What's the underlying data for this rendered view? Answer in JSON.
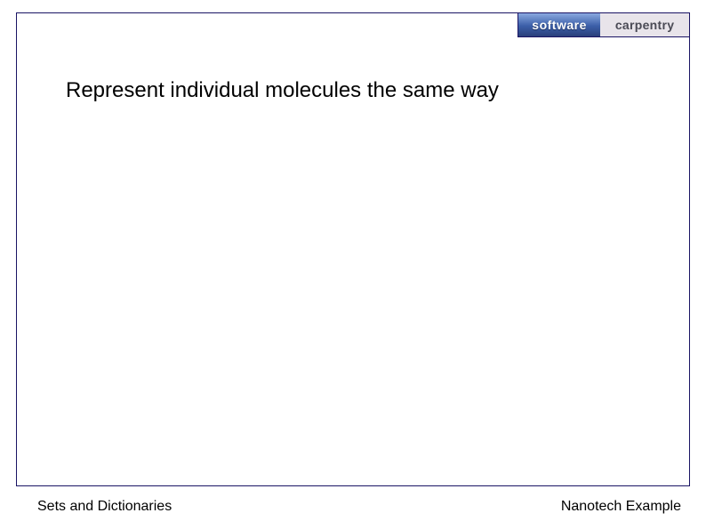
{
  "logo": {
    "left_text": "software",
    "right_text": "carpentry",
    "left_bg_gradient_top": "#8aa9e0",
    "left_bg_gradient_mid": "#3b5ea8",
    "left_bg_gradient_bottom": "#2a3f7a",
    "right_bg": "#e8e4ea",
    "left_text_color": "#ffffff",
    "right_text_color": "#4a4a55",
    "border_color": "#1a1464"
  },
  "slide": {
    "border_color": "#1a1464",
    "background": "#ffffff",
    "main_text": "Represent individual molecules the same way",
    "main_text_fontsize": 24,
    "main_text_color": "#000000"
  },
  "footer": {
    "left": "Sets and Dictionaries",
    "right": "Nanotech Example",
    "fontsize": 16,
    "color": "#000000"
  }
}
